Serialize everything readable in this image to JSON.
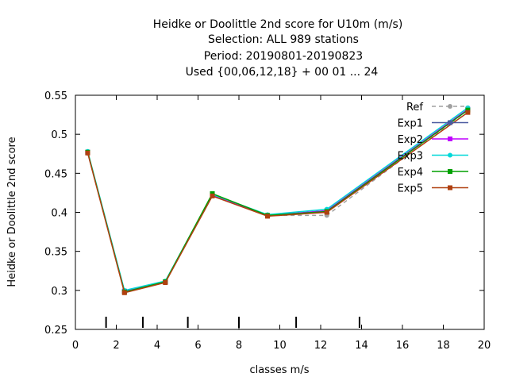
{
  "title_lines": [
    "Heidke or Doolittle 2nd score  for U10m (m/s)",
    "Selection: ALL     989 stations",
    "Period: 20190801-20190823",
    "Used {00,06,12,18} + 00 01 ... 24"
  ],
  "chart_data": {
    "type": "line",
    "xlabel": "classes m/s",
    "ylabel": "Heidke or Doolittle 2nd score",
    "xlim": [
      0,
      20
    ],
    "ylim": [
      0.25,
      0.55
    ],
    "xticks": [
      0,
      2,
      4,
      6,
      8,
      10,
      12,
      14,
      16,
      18,
      20
    ],
    "yticks": [
      0.25,
      0.3,
      0.35,
      0.4,
      0.45,
      0.5,
      0.55
    ],
    "xtick_labels": [
      "0",
      "2",
      "4",
      "6",
      "8",
      "10",
      "12",
      "14",
      "16",
      "18",
      "20"
    ],
    "ytick_labels": [
      "0.25",
      "0.3",
      "0.35",
      "0.4",
      "0.45",
      "0.5",
      "0.55"
    ],
    "class_boundaries": [
      1.5,
      3.3,
      5.5,
      8.0,
      10.8,
      13.9
    ],
    "x": [
      0.6,
      2.4,
      4.4,
      6.7,
      9.4,
      12.3,
      19.2
    ],
    "legend_position": "top-right",
    "grid": false,
    "series": [
      {
        "name": "Ref",
        "color": "#a0a0a0",
        "dashed": true,
        "marker": "circle",
        "values": [
          0.476,
          0.299,
          0.311,
          0.421,
          0.396,
          0.396,
          0.531
        ]
      },
      {
        "name": "Exp1",
        "color": "#4a5aa0",
        "dashed": false,
        "marker": "square",
        "values": [
          0.477,
          0.299,
          0.311,
          0.422,
          0.396,
          0.402,
          0.532
        ]
      },
      {
        "name": "Exp2",
        "color": "#c000ff",
        "dashed": false,
        "marker": "square",
        "values": [
          0.477,
          0.299,
          0.311,
          0.422,
          0.396,
          0.402,
          0.532
        ]
      },
      {
        "name": "Exp3",
        "color": "#00d8d8",
        "dashed": false,
        "marker": "circle",
        "values": [
          0.478,
          0.3,
          0.312,
          0.423,
          0.397,
          0.404,
          0.534
        ]
      },
      {
        "name": "Exp4",
        "color": "#00a000",
        "dashed": false,
        "marker": "square",
        "values": [
          0.477,
          0.298,
          0.311,
          0.424,
          0.396,
          0.401,
          0.531
        ]
      },
      {
        "name": "Exp5",
        "color": "#b04010",
        "dashed": false,
        "marker": "square",
        "values": [
          0.476,
          0.297,
          0.31,
          0.421,
          0.395,
          0.4,
          0.528
        ]
      }
    ]
  }
}
